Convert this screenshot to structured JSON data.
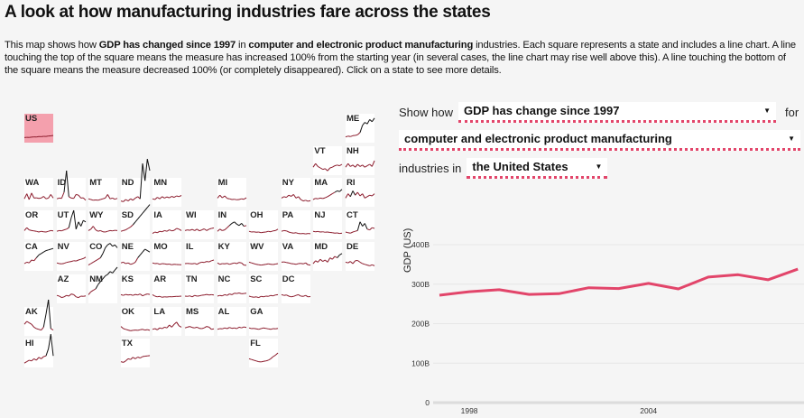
{
  "page": {
    "title": "A look at how manufacturing industries fare across the states",
    "intro": [
      {
        "text": "This map shows how ",
        "bold": false
      },
      {
        "text": "GDP has changed since 1997",
        "bold": true
      },
      {
        "text": " in ",
        "bold": false
      },
      {
        "text": "computer and electronic product manufacturing",
        "bold": true
      },
      {
        "text": " industries. Each square represents a state and includes a line chart. A line touching the top of the square means the measure has increased 100% from the starting year (in several cases, the line chart may rise well above this). A line touching the bottom of the square means the measure decreased 100% (or completely disappeared). Click on a state to see more details.",
        "bold": false
      }
    ]
  },
  "controls": {
    "show_how_label": "Show how",
    "measure_value": "GDP has change since 1997",
    "for_label": "for",
    "industry_value": "computer and electronic product manufacturing",
    "industries_in_label": "industries in",
    "region_value": "the United States",
    "dropdown_icon": "triangle-down-icon"
  },
  "colors": {
    "accent": "#e2456a",
    "selected_tile": "#f4a0ad",
    "sparkline_below": "#8b1a2b",
    "sparkline_above": "#111111",
    "background": "#f5f5f5"
  },
  "map": {
    "selected": "US",
    "tiles": [
      {
        "abbr": "US",
        "col": 0,
        "row": 0,
        "values": [
          0.35,
          0.37,
          0.36,
          0.38,
          0.4,
          0.39,
          0.42,
          0.41,
          0.44,
          0.43,
          0.46,
          0.47,
          0.5
        ]
      },
      {
        "abbr": "ME",
        "col": 10,
        "row": 0,
        "values": [
          0.4,
          0.45,
          0.42,
          0.48,
          0.5,
          0.55,
          0.7,
          1.2,
          1.4,
          1.3,
          1.6,
          1.45,
          1.7
        ]
      },
      {
        "abbr": "VT",
        "col": 9,
        "row": 1,
        "values": [
          0.55,
          0.8,
          0.6,
          0.5,
          0.4,
          0.45,
          0.3,
          0.5,
          0.55,
          0.65,
          0.7,
          0.65,
          0.75
        ]
      },
      {
        "abbr": "NH",
        "col": 10,
        "row": 1,
        "values": [
          0.55,
          0.8,
          0.6,
          0.7,
          0.55,
          0.75,
          0.6,
          0.7,
          0.55,
          0.65,
          0.75,
          0.6,
          1.0
        ]
      },
      {
        "abbr": "WA",
        "col": 0,
        "row": 2,
        "values": [
          0.55,
          0.9,
          0.5,
          0.95,
          0.6,
          0.62,
          0.58,
          0.6,
          0.72,
          0.55,
          0.6,
          0.85,
          0.6
        ]
      },
      {
        "abbr": "ID",
        "col": 1,
        "row": 2,
        "values": [
          0.55,
          0.6,
          0.58,
          1.0,
          2.5,
          0.7,
          0.6,
          0.58,
          0.85,
          0.8,
          0.6,
          0.62,
          0.45
        ]
      },
      {
        "abbr": "MT",
        "col": 2,
        "row": 2,
        "values": [
          0.55,
          0.5,
          0.45,
          0.47,
          0.45,
          0.5,
          0.55,
          0.6,
          0.85,
          0.55,
          0.6,
          0.52,
          0.58
        ]
      },
      {
        "abbr": "ND",
        "col": 3,
        "row": 2,
        "values": [
          0.4,
          0.35,
          0.5,
          0.4,
          0.55,
          0.45,
          0.6,
          0.7,
          0.55,
          3.0,
          1.8,
          3.3,
          2.5
        ]
      },
      {
        "abbr": "MN",
        "col": 4,
        "row": 2,
        "values": [
          0.55,
          0.5,
          0.65,
          0.55,
          0.7,
          0.6,
          0.68,
          0.62,
          0.72,
          0.65,
          0.75,
          0.7,
          0.78
        ]
      },
      {
        "abbr": "MI",
        "col": 6,
        "row": 2,
        "values": [
          0.6,
          0.8,
          0.62,
          0.75,
          0.58,
          0.55,
          0.5,
          0.52,
          0.48,
          0.5,
          0.55,
          0.52,
          0.62
        ]
      },
      {
        "abbr": "NY",
        "col": 8,
        "row": 2,
        "values": [
          0.6,
          0.7,
          0.65,
          0.8,
          0.72,
          0.85,
          0.6,
          0.7,
          0.5,
          0.4,
          0.45,
          0.38,
          0.42
        ]
      },
      {
        "abbr": "MA",
        "col": 9,
        "row": 2,
        "values": [
          0.5,
          0.58,
          0.55,
          0.6,
          0.57,
          0.62,
          0.7,
          0.8,
          0.9,
          1.0,
          1.1,
          1.05,
          1.2
        ]
      },
      {
        "abbr": "RI",
        "col": 10,
        "row": 2,
        "values": [
          0.6,
          0.9,
          0.7,
          1.1,
          0.8,
          1.0,
          0.75,
          0.9,
          0.6,
          0.7,
          0.8,
          0.75,
          0.9
        ]
      },
      {
        "abbr": "OR",
        "col": 0,
        "row": 3,
        "values": [
          0.6,
          0.8,
          0.65,
          0.6,
          0.58,
          0.55,
          0.5,
          0.55,
          0.52,
          0.5,
          0.55,
          0.6,
          0.58
        ]
      },
      {
        "abbr": "UT",
        "col": 1,
        "row": 3,
        "values": [
          0.55,
          0.6,
          0.58,
          0.65,
          0.7,
          0.8,
          1.5,
          2.0,
          0.7,
          1.2,
          0.9,
          1.3,
          1.2
        ]
      },
      {
        "abbr": "WY",
        "col": 2,
        "row": 3,
        "values": [
          0.6,
          0.7,
          0.9,
          0.65,
          0.55,
          0.6,
          0.52,
          0.5,
          0.55,
          0.6,
          0.58,
          0.62,
          0.6
        ]
      },
      {
        "abbr": "SD",
        "col": 3,
        "row": 3,
        "values": [
          0.55,
          0.6,
          0.65,
          0.75,
          0.85,
          1.0,
          1.2,
          1.4,
          1.6,
          1.8,
          2.0,
          2.2,
          2.4
        ]
      },
      {
        "abbr": "IA",
        "col": 4,
        "row": 3,
        "values": [
          0.4,
          0.5,
          0.45,
          0.55,
          0.52,
          0.6,
          0.55,
          0.65,
          0.58,
          0.62,
          0.75,
          0.7,
          0.6
        ]
      },
      {
        "abbr": "WI",
        "col": 5,
        "row": 3,
        "values": [
          0.6,
          0.65,
          0.62,
          0.68,
          0.6,
          0.7,
          0.58,
          0.65,
          0.72,
          0.6,
          0.7,
          0.75,
          0.78
        ]
      },
      {
        "abbr": "IN",
        "col": 6,
        "row": 3,
        "values": [
          0.55,
          0.7,
          0.6,
          0.65,
          0.8,
          0.95,
          1.1,
          1.2,
          1.05,
          0.95,
          1.1,
          0.9,
          0.95
        ]
      },
      {
        "abbr": "OH",
        "col": 7,
        "row": 3,
        "values": [
          0.55,
          0.5,
          0.52,
          0.48,
          0.5,
          0.45,
          0.48,
          0.5,
          0.55,
          0.52,
          0.58,
          0.6,
          0.7
        ]
      },
      {
        "abbr": "PA",
        "col": 8,
        "row": 3,
        "values": [
          0.55,
          0.6,
          0.58,
          0.5,
          0.45,
          0.42,
          0.45,
          0.4,
          0.38,
          0.4,
          0.37,
          0.4,
          0.38
        ]
      },
      {
        "abbr": "NJ",
        "col": 9,
        "row": 3,
        "values": [
          0.55,
          0.52,
          0.54,
          0.5,
          0.52,
          0.48,
          0.5,
          0.47,
          0.45,
          0.42,
          0.44,
          0.4,
          0.42
        ]
      },
      {
        "abbr": "CT",
        "col": 10,
        "row": 3,
        "values": [
          0.5,
          0.45,
          0.42,
          0.5,
          0.55,
          0.6,
          1.2,
          0.9,
          1.1,
          0.7,
          0.65,
          0.8,
          0.75
        ]
      },
      {
        "abbr": "CA",
        "col": 0,
        "row": 4,
        "values": [
          0.5,
          0.6,
          0.55,
          0.75,
          0.7,
          0.9,
          1.1,
          1.2,
          1.3,
          1.4,
          1.45,
          1.5,
          1.55
        ]
      },
      {
        "abbr": "NV",
        "col": 1,
        "row": 4,
        "values": [
          0.55,
          0.5,
          0.48,
          0.52,
          0.58,
          0.62,
          0.65,
          0.7,
          0.68,
          0.75,
          0.8,
          0.85,
          0.95
        ]
      },
      {
        "abbr": "CO",
        "col": 2,
        "row": 4,
        "values": [
          0.4,
          0.5,
          0.6,
          0.7,
          0.8,
          0.9,
          1.2,
          1.6,
          1.8,
          1.9,
          1.7,
          1.8,
          1.6
        ]
      },
      {
        "abbr": "NE",
        "col": 3,
        "row": 4,
        "values": [
          0.55,
          0.6,
          0.5,
          0.55,
          0.45,
          0.5,
          0.6,
          0.9,
          1.1,
          1.3,
          1.5,
          1.4,
          1.3
        ]
      },
      {
        "abbr": "MO",
        "col": 4,
        "row": 4,
        "values": [
          0.55,
          0.5,
          0.52,
          0.45,
          0.5,
          0.48,
          0.45,
          0.47,
          0.42,
          0.45,
          0.44,
          0.43,
          0.42
        ]
      },
      {
        "abbr": "IL",
        "col": 5,
        "row": 4,
        "values": [
          0.5,
          0.52,
          0.5,
          0.48,
          0.52,
          0.45,
          0.55,
          0.6,
          0.58,
          0.65,
          0.62,
          0.7,
          0.75
        ]
      },
      {
        "abbr": "KY",
        "col": 6,
        "row": 4,
        "values": [
          0.55,
          0.45,
          0.5,
          0.48,
          0.52,
          0.45,
          0.5,
          0.55,
          0.5,
          0.58,
          0.55,
          0.4,
          0.38
        ]
      },
      {
        "abbr": "WV",
        "col": 7,
        "row": 4,
        "values": [
          0.6,
          0.55,
          0.5,
          0.45,
          0.42,
          0.4,
          0.42,
          0.45,
          0.48,
          0.45,
          0.44,
          0.47,
          0.5
        ]
      },
      {
        "abbr": "VA",
        "col": 8,
        "row": 4,
        "values": [
          0.6,
          0.62,
          0.58,
          0.55,
          0.5,
          0.48,
          0.45,
          0.5,
          0.52,
          0.48,
          0.55,
          0.42,
          0.4
        ]
      },
      {
        "abbr": "MD",
        "col": 9,
        "row": 4,
        "values": [
          0.5,
          0.7,
          0.6,
          0.8,
          0.65,
          0.75,
          0.6,
          0.9,
          0.8,
          1.0,
          0.9,
          1.1,
          1.2
        ]
      },
      {
        "abbr": "DE",
        "col": 10,
        "row": 4,
        "values": [
          0.6,
          0.55,
          0.65,
          0.5,
          0.7,
          0.72,
          0.6,
          0.5,
          0.45,
          0.4,
          0.35,
          0.42,
          0.35
        ]
      },
      {
        "abbr": "AZ",
        "col": 1,
        "row": 5,
        "values": [
          0.55,
          0.5,
          0.4,
          0.45,
          0.55,
          0.5,
          0.65,
          0.6,
          0.45,
          0.4,
          0.5,
          0.48,
          0.52
        ]
      },
      {
        "abbr": "NM",
        "col": 2,
        "row": 5,
        "values": [
          0.6,
          0.8,
          0.9,
          1.0,
          1.3,
          1.5,
          1.7,
          1.9,
          2.0,
          2.2,
          2.1,
          2.3,
          2.5
        ]
      },
      {
        "abbr": "KS",
        "col": 3,
        "row": 5,
        "values": [
          0.6,
          0.55,
          0.62,
          0.58,
          0.6,
          0.55,
          0.62,
          0.58,
          0.65,
          0.52,
          0.6,
          0.65,
          0.62
        ]
      },
      {
        "abbr": "AR",
        "col": 4,
        "row": 5,
        "values": [
          0.6,
          0.5,
          0.45,
          0.48,
          0.42,
          0.45,
          0.44,
          0.46,
          0.45,
          0.47,
          0.48,
          0.48,
          0.5
        ]
      },
      {
        "abbr": "TN",
        "col": 5,
        "row": 5,
        "values": [
          0.5,
          0.48,
          0.52,
          0.45,
          0.55,
          0.5,
          0.52,
          0.56,
          0.58,
          0.62,
          0.58,
          0.6,
          0.58
        ]
      },
      {
        "abbr": "NC",
        "col": 6,
        "row": 5,
        "values": [
          0.5,
          0.55,
          0.52,
          0.6,
          0.55,
          0.65,
          0.6,
          0.7,
          0.68,
          0.72,
          0.66,
          0.68,
          0.7
        ]
      },
      {
        "abbr": "SC",
        "col": 7,
        "row": 5,
        "values": [
          0.5,
          0.45,
          0.42,
          0.45,
          0.4,
          0.48,
          0.45,
          0.5,
          0.48,
          0.55,
          0.52,
          0.58,
          0.6
        ]
      },
      {
        "abbr": "DC",
        "col": 8,
        "row": 5,
        "values": [
          0.6,
          0.55,
          0.58,
          0.5,
          0.45,
          0.48,
          0.55,
          0.6,
          0.5,
          0.48,
          0.55,
          0.45,
          0.47
        ]
      },
      {
        "abbr": "AK",
        "col": 0,
        "row": 6,
        "values": [
          0.8,
          1.0,
          0.9,
          0.8,
          0.6,
          0.5,
          0.45,
          0.4,
          0.6,
          1.5,
          2.5,
          0.5,
          0.4
        ]
      },
      {
        "abbr": "OK",
        "col": 3,
        "row": 6,
        "values": [
          0.65,
          0.5,
          0.45,
          0.4,
          0.35,
          0.38,
          0.4,
          0.38,
          0.42,
          0.45,
          0.4,
          0.43,
          0.38
        ]
      },
      {
        "abbr": "LA",
        "col": 4,
        "row": 6,
        "values": [
          0.45,
          0.5,
          0.42,
          0.55,
          0.5,
          0.6,
          0.55,
          0.75,
          0.6,
          0.8,
          0.95,
          0.7,
          0.6
        ]
      },
      {
        "abbr": "MS",
        "col": 5,
        "row": 6,
        "values": [
          0.55,
          0.6,
          0.65,
          0.58,
          0.55,
          0.6,
          0.52,
          0.5,
          0.55,
          0.65,
          0.6,
          0.45,
          0.48
        ]
      },
      {
        "abbr": "AL",
        "col": 6,
        "row": 6,
        "values": [
          0.45,
          0.5,
          0.48,
          0.55,
          0.5,
          0.58,
          0.52,
          0.55,
          0.5,
          0.6,
          0.55,
          0.62,
          0.58
        ]
      },
      {
        "abbr": "GA",
        "col": 7,
        "row": 6,
        "values": [
          0.55,
          0.5,
          0.52,
          0.48,
          0.45,
          0.5,
          0.55,
          0.52,
          0.48,
          0.45,
          0.5,
          0.48,
          0.52
        ]
      },
      {
        "abbr": "HI",
        "col": 0,
        "row": 7,
        "values": [
          0.3,
          0.4,
          0.5,
          0.45,
          0.6,
          0.5,
          0.7,
          0.6,
          0.75,
          0.8,
          1.3,
          2.3,
          0.8
        ]
      },
      {
        "abbr": "TX",
        "col": 3,
        "row": 7,
        "values": [
          0.4,
          0.35,
          0.45,
          0.6,
          0.55,
          0.7,
          0.6,
          0.72,
          0.65,
          0.75,
          0.78,
          0.8,
          0.82
        ]
      },
      {
        "abbr": "FL",
        "col": 7,
        "row": 7,
        "values": [
          0.6,
          0.55,
          0.5,
          0.45,
          0.4,
          0.38,
          0.42,
          0.45,
          0.5,
          0.6,
          0.75,
          0.85,
          1.0
        ]
      }
    ]
  },
  "chart_data": {
    "type": "line",
    "title": "",
    "xlabel": "",
    "ylabel": "GDP (US)",
    "x": [
      1997,
      1998,
      1999,
      2000,
      2001,
      2002,
      2003,
      2004,
      2005,
      2006,
      2007,
      2008,
      2009
    ],
    "series": [
      {
        "name": "United States",
        "values": [
          272,
          281,
          286,
          274,
          276,
          291,
          289,
          302,
          288,
          318,
          324,
          311,
          338
        ]
      }
    ],
    "x_tick_labels": [
      "1998",
      "2004"
    ],
    "x_ticks": [
      1998,
      2004
    ],
    "y_tick_labels": [
      "0",
      "100B",
      "200B",
      "300B",
      "400B"
    ],
    "y_ticks": [
      0,
      100,
      200,
      300,
      400
    ],
    "ylim": [
      0,
      400
    ],
    "units": "billions USD",
    "grid": true,
    "color": "#e2456a"
  }
}
